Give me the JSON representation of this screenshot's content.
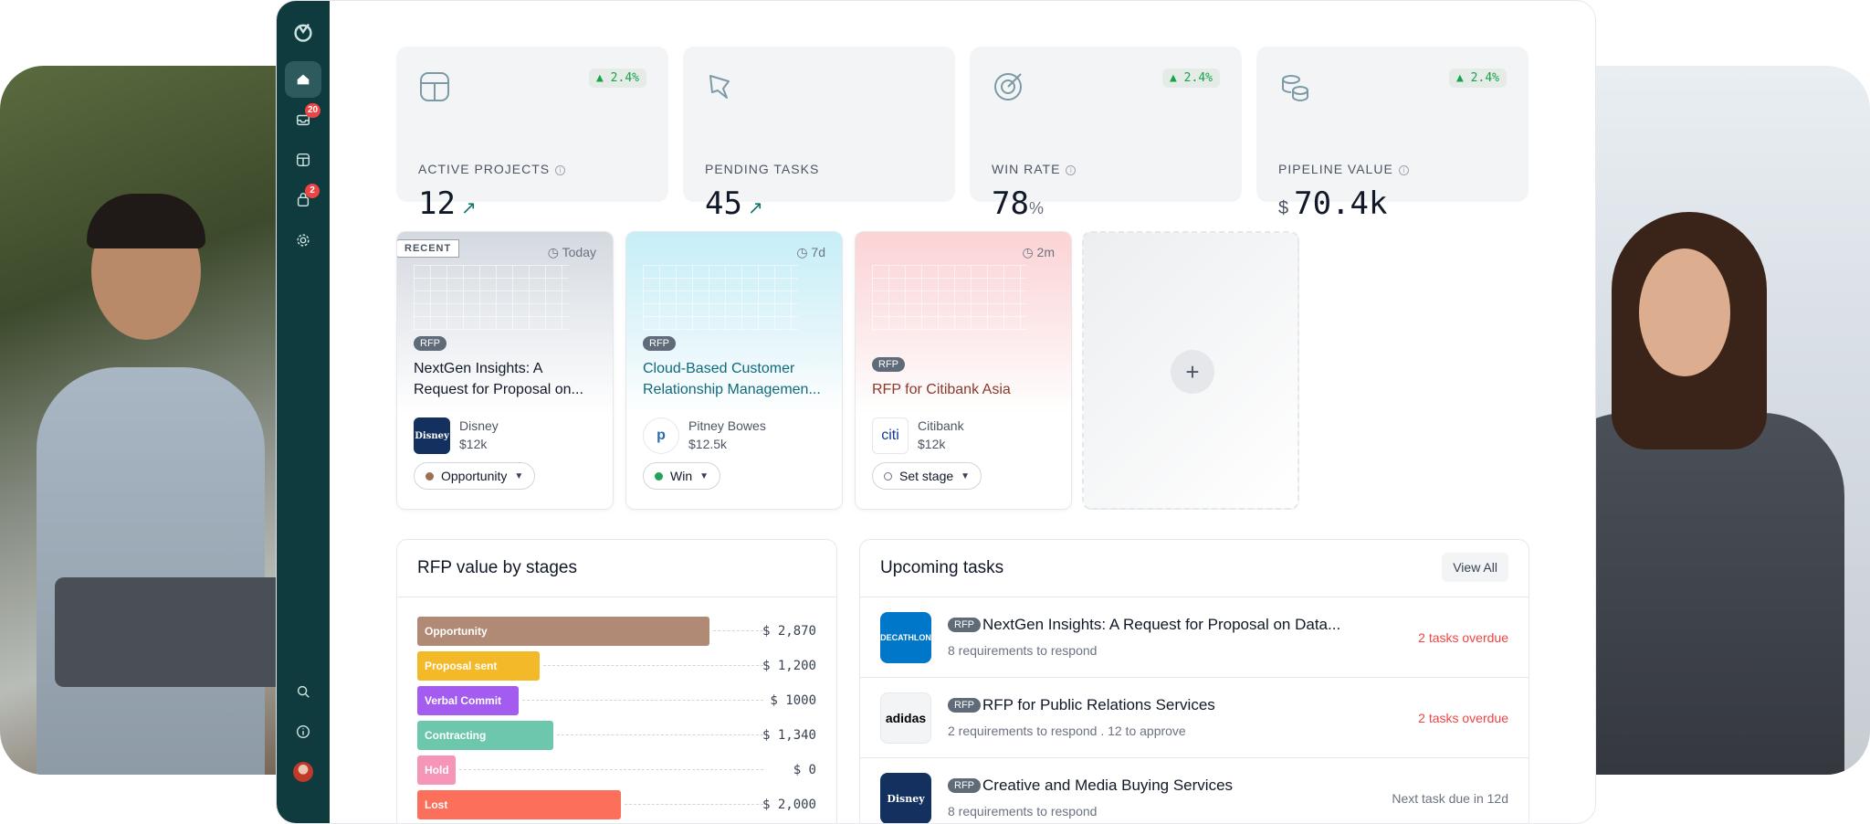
{
  "kpis": [
    {
      "label": "ACTIVE PROJECTS",
      "value": "12",
      "change": "▲ 2.4%",
      "info": "i"
    },
    {
      "label": "PENDING TASKS",
      "value": "45",
      "change": ""
    },
    {
      "label": "WIN RATE",
      "value": "78",
      "unit": "%",
      "change": "▲ 2.4%",
      "info": "i"
    },
    {
      "label": "PIPELINE VALUE",
      "currency": "$",
      "value": "70.4k",
      "change": "▲ 2.4%",
      "info": "i"
    }
  ],
  "rail": {
    "inbox_badge": "20",
    "bag_badge": "2"
  },
  "projects": [
    {
      "recent_tag": "RECENT",
      "time": "Today",
      "tag": "RFP",
      "title_line1": "NextGen Insights: A",
      "title_line2": "Request for Proposal on...",
      "client": "Disney",
      "amount": "$12k",
      "stage": "Opportunity",
      "stage_color": "#9c6f55",
      "logo": "Disney"
    },
    {
      "time": "7d",
      "tag": "RFP",
      "title_line1": "Cloud-Based Customer",
      "title_line2": "Relationship Managemen...",
      "client": "Pitney Bowes",
      "amount": "$12.5k",
      "stage": "Win",
      "stage_color": "#22a35a",
      "logo": "p"
    },
    {
      "time": "2m",
      "tag": "RFP",
      "title_line1": "RFP for Citibank Asia",
      "client": "Citibank",
      "amount": "$12k",
      "stage": "Set stage",
      "stage_color": "#ffffff",
      "logo": "citi"
    }
  ],
  "add_card": {
    "icon": "+"
  },
  "rfp_chart": {
    "title": "RFP value by stages"
  },
  "chart_data": {
    "type": "bar",
    "orientation": "horizontal",
    "title": "RFP value by stages",
    "categories": [
      "Opportunity",
      "Proposal sent",
      "Verbal Commit",
      "Contracting",
      "Hold",
      "Lost"
    ],
    "values": [
      2870,
      1200,
      1000,
      1340,
      0,
      2000
    ],
    "value_labels": [
      "$ 2,870",
      "$ 1,200",
      "$ 1000",
      "$ 1,340",
      "$ 0",
      "$ 2,000"
    ],
    "colors": [
      "#b08a74",
      "#f4b928",
      "#a45cf0",
      "#6cc7ad",
      "#f595b7",
      "#fb6f5b"
    ]
  },
  "tasks": {
    "title": "Upcoming tasks",
    "view_all": "View All",
    "rows": [
      {
        "tag": "RFP",
        "title": "NextGen Insights: A Request for Proposal on Data...",
        "sub": "8 requirements to respond",
        "status": "2 tasks overdue",
        "status_color": "#ef4444",
        "logo": "DECATHLON"
      },
      {
        "tag": "RFP",
        "title": "RFP for Public Relations Services",
        "sub": "2 requirements to respond . 12 to approve",
        "status": "2 tasks overdue",
        "status_color": "#ef4444",
        "logo": "adidas"
      },
      {
        "tag": "RFP",
        "title": "Creative and Media Buying Services",
        "sub": "8 requirements to respond",
        "status": "Next task due in 12d",
        "status_color": "#6b7280",
        "logo": "Disney"
      }
    ]
  }
}
